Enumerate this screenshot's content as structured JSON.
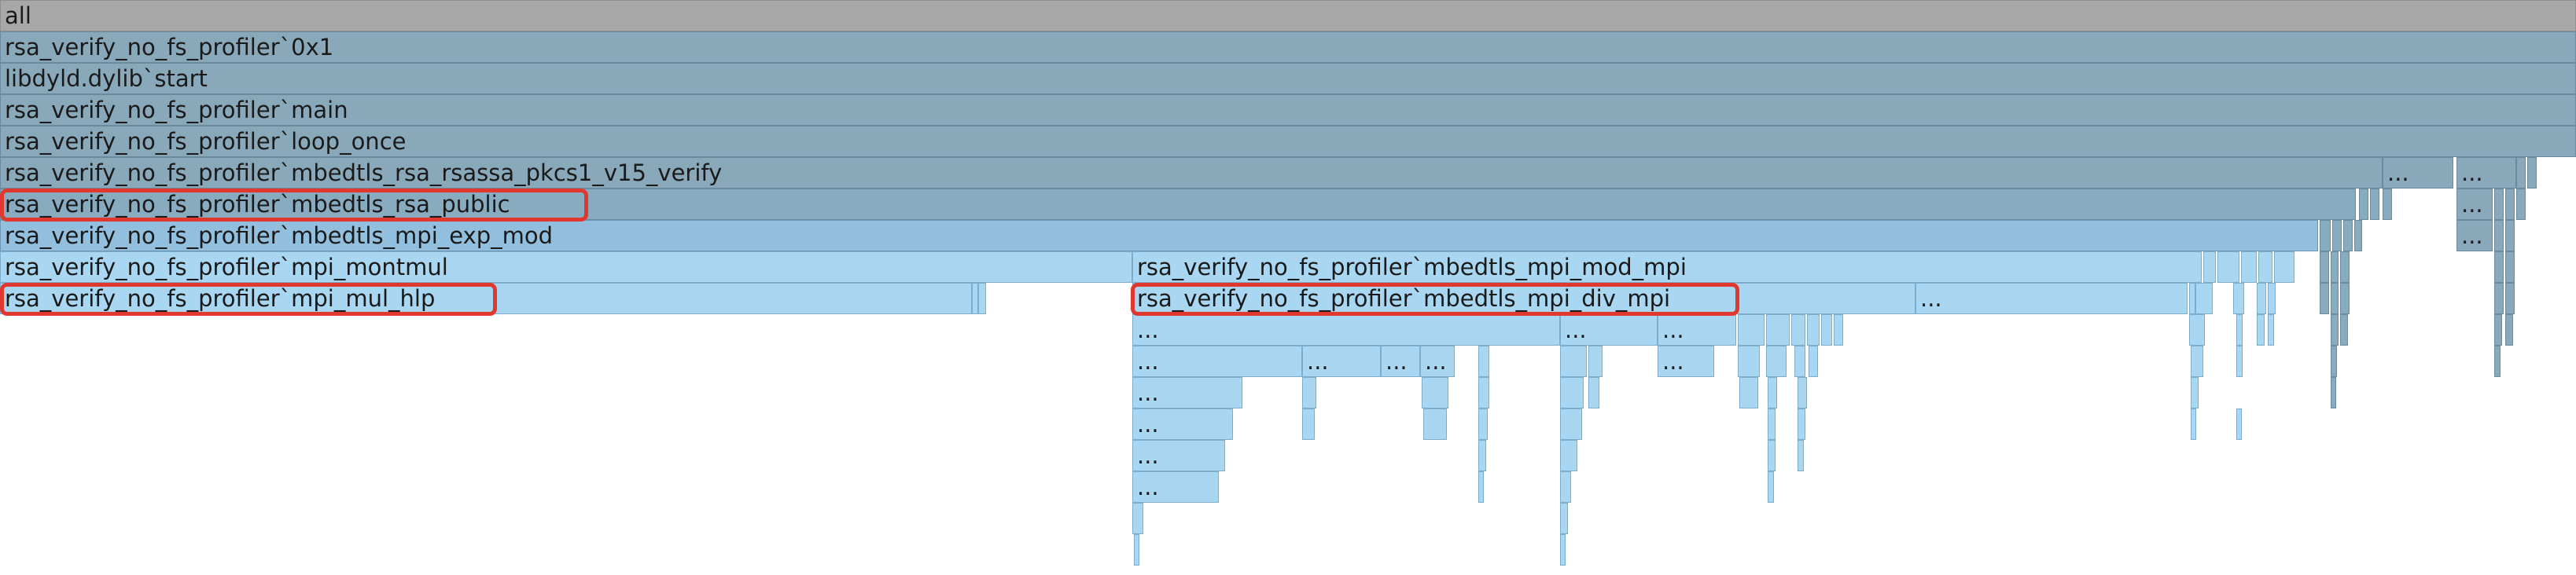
{
  "flame": {
    "row0": {
      "all": "all"
    },
    "row1": {
      "0x1": "rsa_verify_no_fs_profiler`0x1"
    },
    "row2": {
      "start": "libdyld.dylib`start"
    },
    "row3": {
      "main": "rsa_verify_no_fs_profiler`main"
    },
    "row4": {
      "loop_once": "rsa_verify_no_fs_profiler`loop_once"
    },
    "row5": {
      "pkcs1_verify": "rsa_verify_no_fs_profiler`mbedtls_rsa_rsassa_pkcs1_v15_verify",
      "more_a": "...",
      "more_b": "..."
    },
    "row6": {
      "rsa_public": "rsa_verify_no_fs_profiler`mbedtls_rsa_public",
      "more_a": "..."
    },
    "row7": {
      "exp_mod": "rsa_verify_no_fs_profiler`mbedtls_mpi_exp_mod",
      "more_a": "..."
    },
    "row8": {
      "montmul": "rsa_verify_no_fs_profiler`mpi_montmul",
      "mod_mpi": "rsa_verify_no_fs_profiler`mbedtls_mpi_mod_mpi"
    },
    "row9": {
      "mul_hlp": "rsa_verify_no_fs_profiler`mpi_mul_hlp",
      "div_mpi": "rsa_verify_no_fs_profiler`mbedtls_mpi_div_mpi",
      "more_a": "..."
    },
    "row10": {
      "a": "...",
      "b": "...",
      "c": "..."
    },
    "row11": {
      "a": "...",
      "b": "...",
      "c": "...",
      "d": "...",
      "e": "..."
    },
    "row12": {
      "a": "..."
    },
    "row13": {
      "a": "..."
    },
    "row14": {
      "a": "..."
    },
    "row15": {
      "a": "..."
    }
  },
  "colors": {
    "root": "#a8a8a8",
    "upper_frames": "#89a9bb",
    "mid_frames": "#93bfde",
    "leaf_frames": "#a9d6f0",
    "highlight": "#e0382e"
  }
}
